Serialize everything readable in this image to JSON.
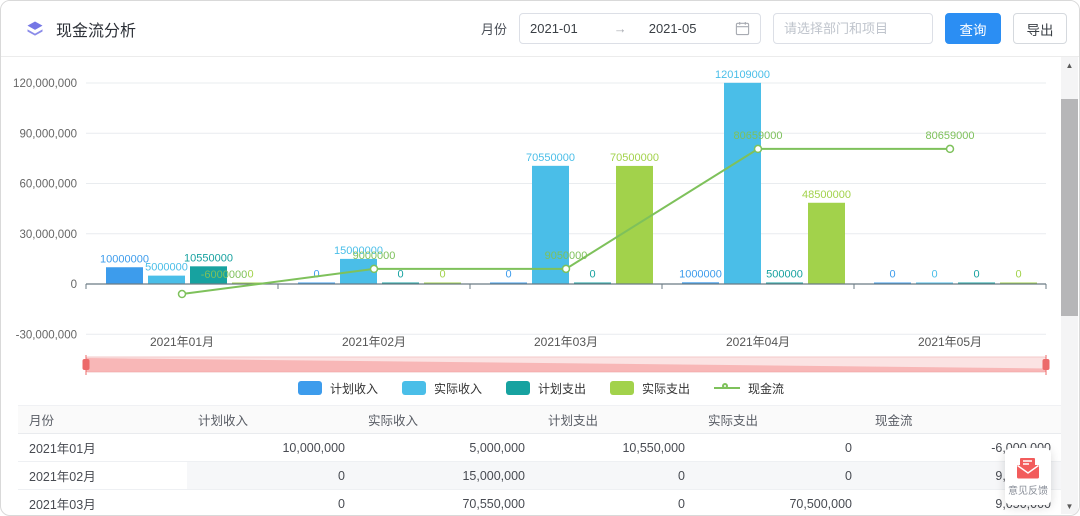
{
  "header": {
    "title": "现金流分析",
    "month_label": "月份",
    "date_start": "2021-01",
    "date_arrow": "→",
    "date_end": "2021-05",
    "project_placeholder": "请选择部门和项目",
    "query_label": "查询",
    "export_label": "导出"
  },
  "chart_data": {
    "type": "bar+line",
    "title": "",
    "categories": [
      "2021年01月",
      "2021年02月",
      "2021年03月",
      "2021年04月",
      "2021年05月"
    ],
    "series": [
      {
        "name": "计划收入",
        "type": "bar",
        "color": "#3d9cec",
        "values": [
          10000000,
          0,
          0,
          1000000,
          0
        ]
      },
      {
        "name": "实际收入",
        "type": "bar",
        "color": "#4abee8",
        "values": [
          5000000,
          15000000,
          70550000,
          120109000,
          0
        ]
      },
      {
        "name": "计划支出",
        "type": "bar",
        "color": "#17a2a0",
        "values": [
          10550000,
          0,
          0,
          500000,
          0
        ]
      },
      {
        "name": "实际支出",
        "type": "bar",
        "color": "#a2d24b",
        "values": [
          0,
          0,
          70500000,
          48500000,
          0
        ]
      },
      {
        "name": "现金流",
        "type": "line",
        "color": "#7ec15b",
        "values": [
          -6000000,
          9000000,
          9050000,
          80659000,
          80659000
        ]
      }
    ],
    "yticks": [
      {
        "value": 120000000,
        "label": "120,000,000"
      },
      {
        "value": 90000000,
        "label": "90,000,000"
      },
      {
        "value": 60000000,
        "label": "60,000,000"
      },
      {
        "value": 30000000,
        "label": "30,000,000"
      },
      {
        "value": 0,
        "label": "0"
      },
      {
        "value": -30000000,
        "label": "-30,000,000"
      }
    ],
    "ylim": [
      -30000000,
      135000000
    ],
    "grid": true,
    "legend_position": "bottom",
    "datazoom": {
      "range_start": "2021年01月",
      "range_end": "2021年05月"
    }
  },
  "table": {
    "headers": [
      "月份",
      "计划收入",
      "实际收入",
      "计划支出",
      "实际支出",
      "现金流"
    ],
    "rows": [
      [
        "2021年01月",
        "10,000,000",
        "5,000,000",
        "10,550,000",
        "0",
        "-6,000,000"
      ],
      [
        "2021年02月",
        "0",
        "15,000,000",
        "0",
        "0",
        "9,000,000"
      ],
      [
        "2021年03月",
        "0",
        "70,550,000",
        "0",
        "70,500,000",
        "9,050,000"
      ]
    ]
  },
  "feedback": {
    "label": "意见反馈"
  },
  "scrollbar": {
    "up_glyph": "▲",
    "down_glyph": "▼"
  },
  "colors": {
    "accent_blue": "#2b8ef3",
    "title_icon_purple": "#7577e5",
    "slider_track": "#fbe3e3",
    "slider_shadow": "#f58c8c",
    "slider_handle": "#ec6a6a",
    "axis_line": "#6b7b84",
    "grid_line": "#e9ecef",
    "feedback_red": "#f25c5c"
  }
}
